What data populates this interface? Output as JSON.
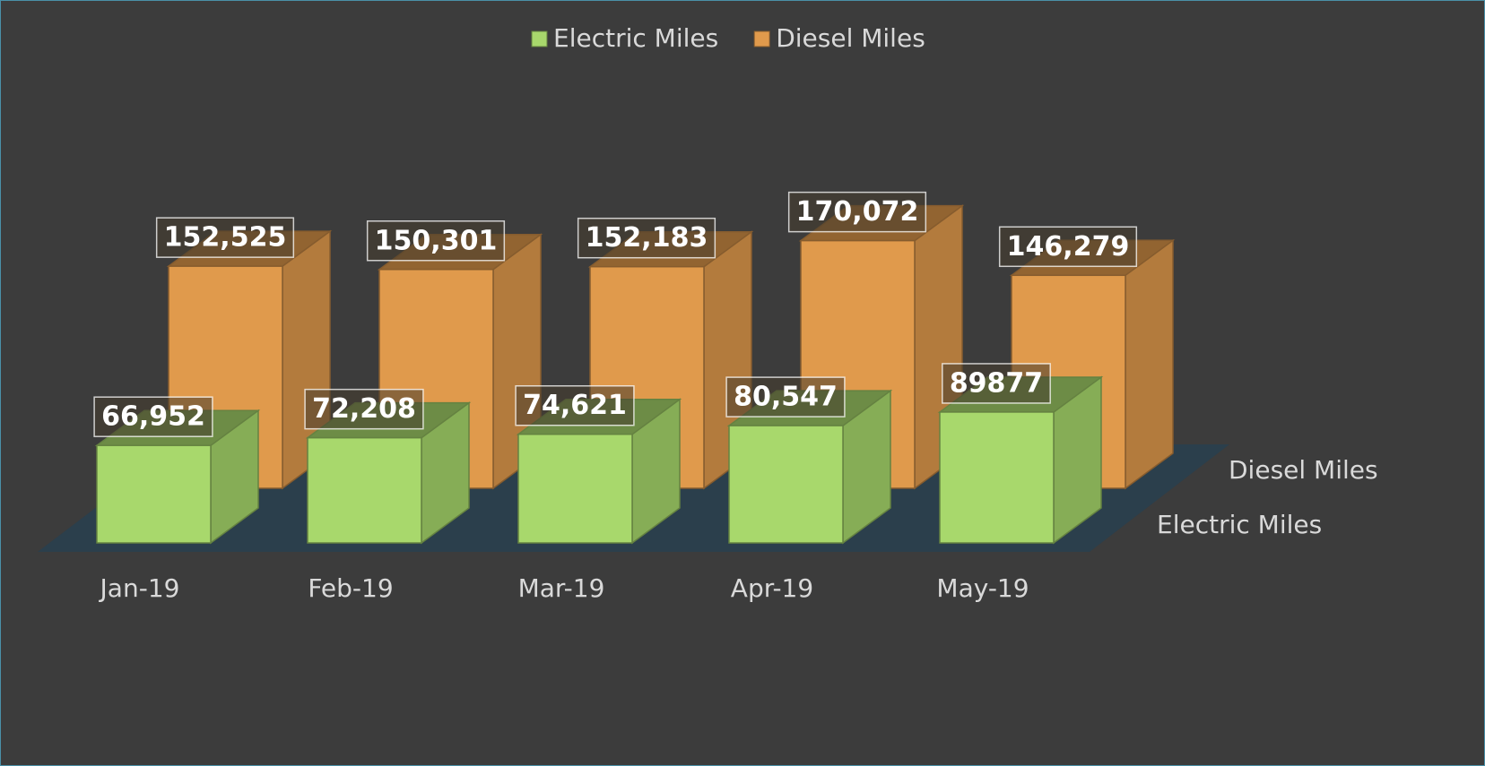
{
  "chart_data": {
    "type": "bar3d",
    "categories": [
      "Jan-19",
      "Feb-19",
      "Mar-19",
      "Apr-19",
      "May-19"
    ],
    "series": [
      {
        "name": "Electric Miles",
        "color": "#a8d86c",
        "values": [
          66952,
          72208,
          74621,
          80547,
          89877
        ],
        "value_labels": [
          "66,952",
          "72,208",
          "74,621",
          "80,547",
          "89877"
        ]
      },
      {
        "name": "Diesel Miles",
        "color": "#e09a4c",
        "values": [
          152525,
          150301,
          152183,
          170072,
          146279
        ],
        "value_labels": [
          "152,525",
          "150,301",
          "152,183",
          "170,072",
          "146,279"
        ]
      }
    ],
    "legend": "top"
  }
}
